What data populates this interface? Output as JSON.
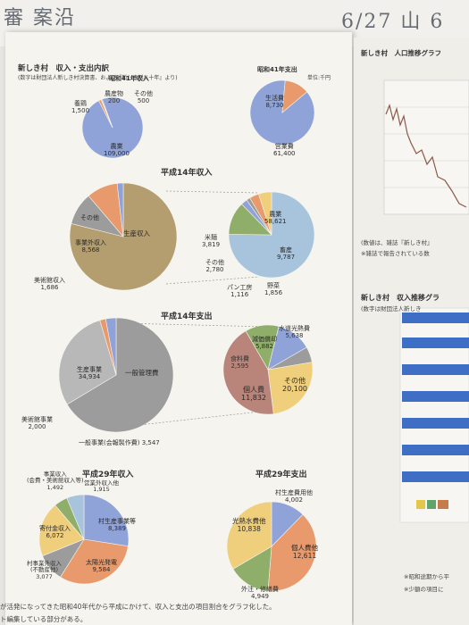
{
  "handwriting": {
    "left": "審 案沿",
    "right": "6/27 山 6"
  },
  "page_header": {
    "title": "新しき村　収入・支出内訳",
    "subtitle": "(数字は財団法人新しき村決算書、および『新しき村八十年』より)",
    "unit": "単位:千円"
  },
  "charts": {
    "s41_income": {
      "title": "昭和41年収入",
      "slices": [
        {
          "label": "農業",
          "value": "109,000"
        },
        {
          "label": "養鶏",
          "value": "1,500"
        },
        {
          "label": "農産物",
          "value": "200"
        },
        {
          "label": "その他",
          "value": "500"
        }
      ]
    },
    "s41_expense": {
      "title": "昭和41年支出",
      "slices": [
        {
          "label": "営業費",
          "value": "61,400"
        },
        {
          "label": "生活費",
          "value": "8,730"
        }
      ]
    },
    "h14_income": {
      "title": "平成14年収入",
      "left_slices": [
        {
          "label": "生産収入",
          "value": ""
        },
        {
          "label": "その他",
          "value": ""
        },
        {
          "label": "事業外収入",
          "value": "8,568"
        },
        {
          "label": "美術館収入",
          "value": "1,686"
        }
      ],
      "right_slices": [
        {
          "label": "農業",
          "value": "58,621"
        },
        {
          "label": "畜産",
          "value": "9,787"
        },
        {
          "label": "野菜",
          "value": "1,856"
        },
        {
          "label": "パン工房",
          "value": "1,116"
        },
        {
          "label": "その他",
          "value": "2,780"
        },
        {
          "label": "米麺",
          "value": "3,819"
        }
      ]
    },
    "h14_expense": {
      "title": "平成14年支出",
      "left_slices": [
        {
          "label": "一般管理費",
          "value": ""
        },
        {
          "label": "生産事業",
          "value": "34,934"
        },
        {
          "label": "美術館事業",
          "value": "2,000"
        },
        {
          "label": "一般事業(会報製作費)",
          "value": "3,547"
        }
      ],
      "right_slices": [
        {
          "label": "水道光熱費",
          "value": "5,638"
        },
        {
          "label": "減価償却",
          "value": "5,882"
        },
        {
          "label": "食料費",
          "value": "2,595"
        },
        {
          "label": "個人費",
          "value": "11,832"
        },
        {
          "label": "その他",
          "value": "20,100"
        }
      ]
    },
    "h29_income": {
      "title": "平成29年収入",
      "slices": [
        {
          "label": "村生産事業等",
          "value": "8,389"
        },
        {
          "label": "太陽光発電",
          "value": "9,584"
        },
        {
          "label": "村事業外収入(不動産他)",
          "value": "3,077"
        },
        {
          "label": "寄付金収入",
          "value": "6,072"
        },
        {
          "label": "事業収入(会費・美術館収入等)",
          "value": "1,492"
        },
        {
          "label": "営業外収入他",
          "value": "1,915"
        }
      ]
    },
    "h29_expense": {
      "title": "平成29年支出",
      "slices": [
        {
          "label": "村生産費用他",
          "value": "4,002"
        },
        {
          "label": "個人費他",
          "value": "12,611"
        },
        {
          "label": "外注・修繕費",
          "value": "4,949"
        },
        {
          "label": "光熱水費他",
          "value": "10,838"
        }
      ]
    }
  },
  "footer": {
    "line1": "が活発になってきた昭和40年代から平成にかけて、収入と支出の項目割合をグラフ化した。",
    "line2": "ト編集している部分がある。"
  },
  "right_page": {
    "line_chart_title": "新しき村　人口推移グラフ",
    "note1": "(数値は、雑誌『新しき村』",
    "note2": "※雑誌で報告されている数",
    "bar_title": "新しき村　収入推移グラ",
    "bar_sub": "(数字は財団法人新しき",
    "foot1": "※昭和途期から平",
    "foot2": "※少額の項目に"
  },
  "colors": {
    "blue": "#8fa3d8",
    "orange": "#e89a6c",
    "tan": "#b49d6f",
    "green": "#8fae6a",
    "grey": "#9c9c9c",
    "brown": "#b9857a",
    "yellow": "#f0cf7c",
    "lightblue": "#a7c4dc"
  }
}
